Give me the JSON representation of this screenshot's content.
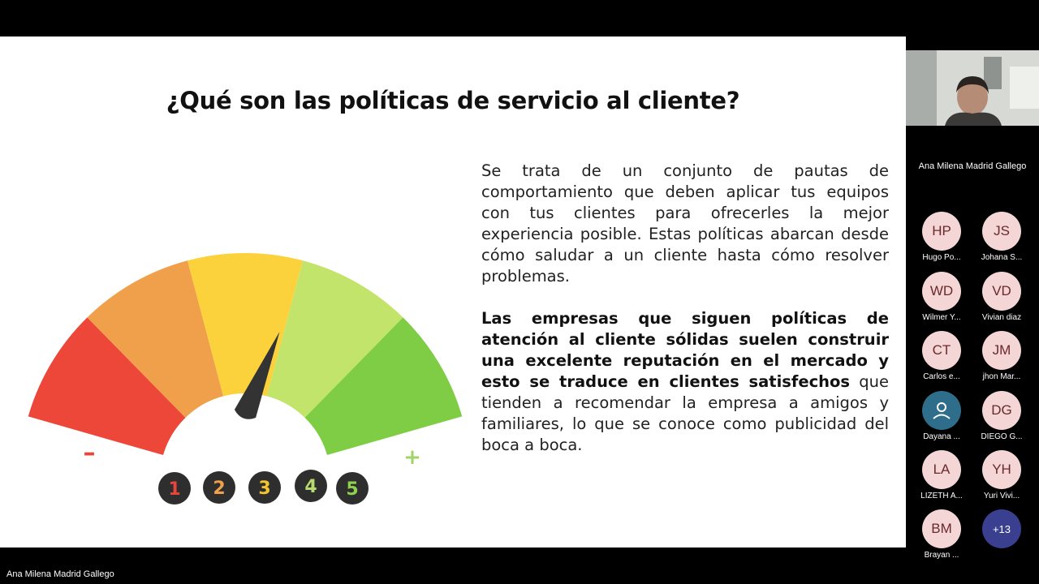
{
  "slide": {
    "title": "¿Qué son las políticas de servicio al cliente?",
    "paragraph1": "Se trata de un conjunto de pautas de comportamiento que deben aplicar tus equipos con tus clientes para ofrecerles la mejor experiencia posible. Estas políticas abarcan desde cómo saludar a un cliente hasta cómo resolver problemas.",
    "paragraph2_bold": "Las empresas que siguen políticas de atención al cliente sólidas suelen construir una excelente reputación en el mercado y esto se traduce en clientes satisfechos",
    "paragraph2_rest": " que tienden a recomendar la empresa a amigos y familiares, lo que se conoce como publicidad del boca a boca.",
    "gauge": {
      "minus": "–",
      "plus": "+",
      "needle_level": 3.7,
      "segment_colors": [
        "#ec4739",
        "#f0a04b",
        "#fbd13c",
        "#c2e46b",
        "#7fcd45"
      ],
      "number_colors": [
        "#e8463a",
        "#f0a04b",
        "#f4c430",
        "#b8d96e",
        "#8fd14f"
      ],
      "numbers": [
        "1",
        "2",
        "3",
        "4",
        "5"
      ]
    }
  },
  "meeting": {
    "speaker_name": "Ana Milena Madrid Gallego",
    "presenter_label": "Ana Milena Madrid Gallego",
    "participants": [
      {
        "initials": "HP",
        "name": "Hugo Po..."
      },
      {
        "initials": "JS",
        "name": "Johana S..."
      },
      {
        "initials": "WD",
        "name": "Wilmer Y..."
      },
      {
        "initials": "VD",
        "name": "Vivian diaz"
      },
      {
        "initials": "CT",
        "name": "Carlos e..."
      },
      {
        "initials": "JM",
        "name": "jhon Mar..."
      },
      {
        "initials": "",
        "name": "Dayana ..."
      },
      {
        "initials": "DG",
        "name": "DIEGO G..."
      },
      {
        "initials": "LA",
        "name": "LIZETH A..."
      },
      {
        "initials": "YH",
        "name": "Yuri Vivi..."
      },
      {
        "initials": "BM",
        "name": "Brayan ..."
      },
      {
        "initials": "+13",
        "name": ""
      }
    ]
  }
}
